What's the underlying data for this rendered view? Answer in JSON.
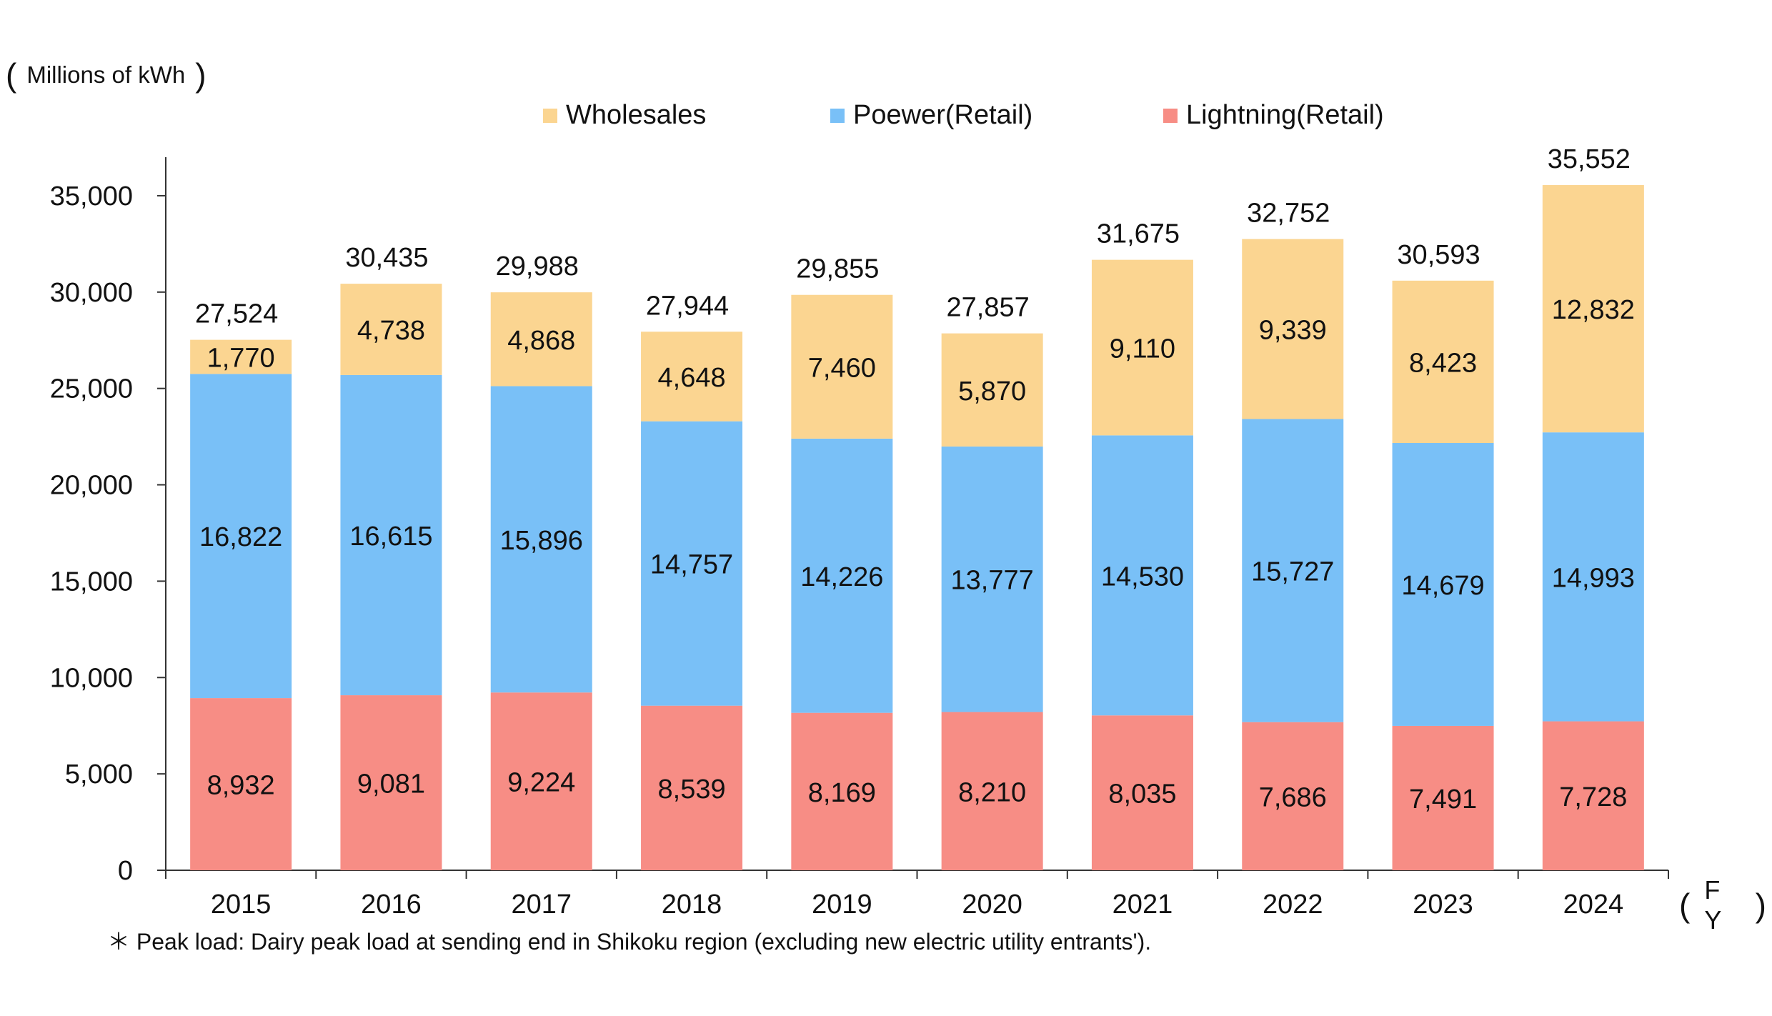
{
  "unit_label": "Millions of kWh",
  "x_unit_label": "F Y",
  "footnote": "＊ Peak load: Dairy peak load at sending end in Shikoku region (excluding new electric utility entrants').",
  "colors": {
    "wholesales": "#FBD591",
    "power_retail": "#79C0F7",
    "lightning_retail": "#F78D85",
    "axis": "#333333"
  },
  "chart_data": {
    "type": "bar",
    "stacked": true,
    "categories": [
      "2015",
      "2016",
      "2017",
      "2018",
      "2019",
      "2020",
      "2021",
      "2022",
      "2023",
      "2024"
    ],
    "series": [
      {
        "name": "Lightning(Retail)",
        "values": [
          8932,
          9081,
          9224,
          8539,
          8169,
          8210,
          8035,
          7686,
          7491,
          7728
        ]
      },
      {
        "name": "Poewer(Retail)",
        "values": [
          16822,
          16615,
          15896,
          14757,
          14226,
          13777,
          14530,
          15727,
          14679,
          14993
        ]
      },
      {
        "name": "Wholesales",
        "values": [
          1770,
          4738,
          4868,
          4648,
          7460,
          5870,
          9110,
          9339,
          8423,
          12832
        ]
      }
    ],
    "totals": [
      27524,
      30435,
      29988,
      27944,
      29855,
      27857,
      31675,
      32752,
      30593,
      35552
    ],
    "labels": {
      "lightning": [
        "8,932",
        "9,081",
        "9,224",
        "8,539",
        "8,169",
        "8,210",
        "8,035",
        "7,686",
        "7,491",
        "7,728"
      ],
      "power": [
        "16,822",
        "16,615",
        "15,896",
        "14,757",
        "14,226",
        "13,777",
        "14,530",
        "15,727",
        "14,679",
        "14,993"
      ],
      "wholesales": [
        "1,770",
        "4,738",
        "4,868",
        "4,648",
        "7,460",
        "5,870",
        "9,110",
        "9,339",
        "8,423",
        "12,832"
      ],
      "totals": [
        "27,524",
        "30,435",
        "29,988",
        "27,944",
        "29,855",
        "27,857",
        "31,675",
        "32,752",
        "30,593",
        "35,552"
      ]
    },
    "yticks": [
      0,
      5000,
      10000,
      15000,
      20000,
      25000,
      30000,
      35000
    ],
    "ytick_labels": [
      "0",
      "5,000",
      "10,000",
      "15,000",
      "20,000",
      "25,000",
      "30,000",
      "35,000"
    ],
    "ylim": [
      0,
      37000
    ],
    "legend_order": [
      "Wholesales",
      "Poewer(Retail)",
      "Lightning(Retail)"
    ],
    "legend_position": "top",
    "grid": false
  }
}
